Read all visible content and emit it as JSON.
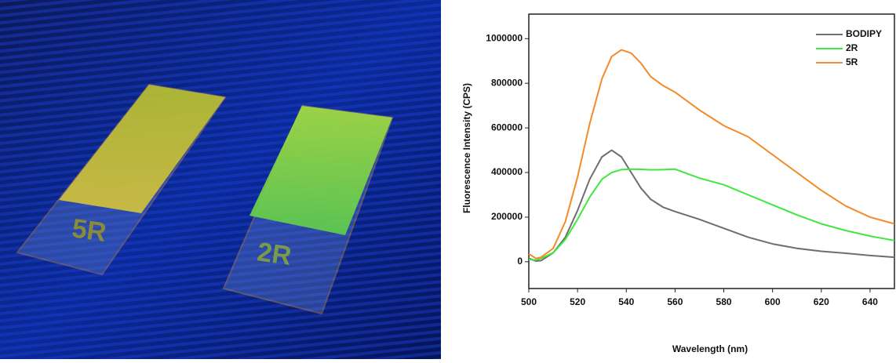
{
  "photo_labels": [
    "5R",
    "2R"
  ],
  "chart_data": {
    "type": "line",
    "x_label": "Wavelength (nm)",
    "y_label": "Fluorescence Intensity (CPS)",
    "x": [
      500,
      503,
      505,
      510,
      515,
      520,
      525,
      530,
      534,
      538,
      542,
      546,
      550,
      555,
      560,
      570,
      580,
      590,
      600,
      610,
      620,
      630,
      640,
      650
    ],
    "series": [
      {
        "name": "BODIPY",
        "color": "#6e6e6e",
        "values": [
          15000,
          3000,
          5000,
          40000,
          110000,
          230000,
          370000,
          470000,
          500000,
          470000,
          400000,
          330000,
          280000,
          245000,
          225000,
          190000,
          150000,
          110000,
          80000,
          60000,
          47000,
          38000,
          28000,
          20000
        ]
      },
      {
        "name": "2R",
        "color": "#3ee83e",
        "values": [
          10000,
          8000,
          15000,
          40000,
          100000,
          190000,
          290000,
          370000,
          400000,
          413000,
          415000,
          414000,
          412000,
          413000,
          415000,
          375000,
          345000,
          300000,
          255000,
          210000,
          170000,
          140000,
          115000,
          95000
        ]
      },
      {
        "name": "5R",
        "color": "#f58a2c",
        "values": [
          35000,
          15000,
          20000,
          60000,
          180000,
          380000,
          620000,
          820000,
          920000,
          950000,
          935000,
          890000,
          830000,
          790000,
          760000,
          680000,
          610000,
          560000,
          480000,
          400000,
          320000,
          250000,
          200000,
          170000
        ]
      }
    ],
    "xlim": [
      500,
      650
    ],
    "ylim": [
      -120000,
      1110000
    ],
    "xticks": [
      500,
      520,
      540,
      560,
      580,
      600,
      620,
      640
    ],
    "yticks": [
      0,
      200000,
      400000,
      600000,
      800000,
      1000000
    ],
    "legend": "upper right"
  }
}
